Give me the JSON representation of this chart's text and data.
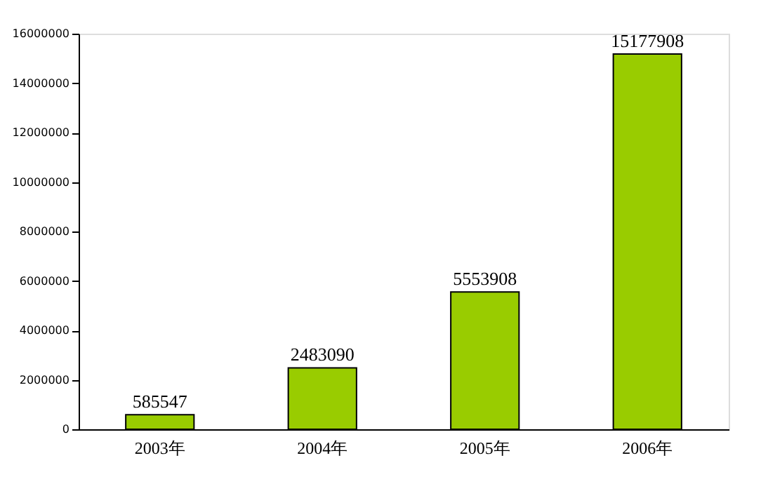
{
  "chart_data": {
    "type": "bar",
    "categories": [
      "2003年",
      "2004年",
      "2005年",
      "2006年"
    ],
    "values": [
      585547,
      2483090,
      5553908,
      15177908
    ],
    "color": "#99cc00",
    "data_labels": true,
    "grid": false,
    "ylim": [
      0,
      16000000
    ],
    "yticks": [
      0,
      2000000,
      4000000,
      6000000,
      8000000,
      10000000,
      12000000,
      14000000,
      16000000
    ]
  }
}
